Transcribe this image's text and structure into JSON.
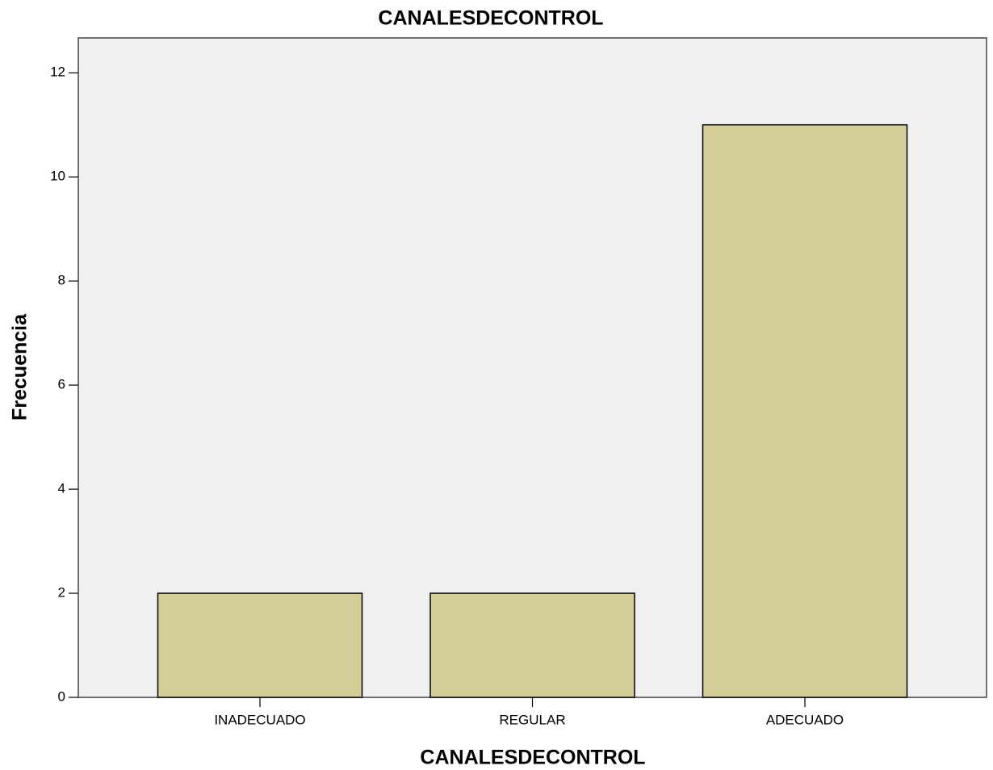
{
  "chart_data": {
    "type": "bar",
    "title": "CANALESDECONTROL",
    "x_label": "CANALESDECONTROL",
    "y_label": "Frecuencia",
    "categories": [
      "INADECUADO",
      "REGULAR",
      "ADECUADO"
    ],
    "values": [
      2,
      2,
      11
    ],
    "color": "#d3cd98",
    "ylim": [
      0,
      12.67
    ],
    "yticks": [
      0,
      2,
      4,
      6,
      8,
      10,
      12
    ],
    "grid": false
  }
}
